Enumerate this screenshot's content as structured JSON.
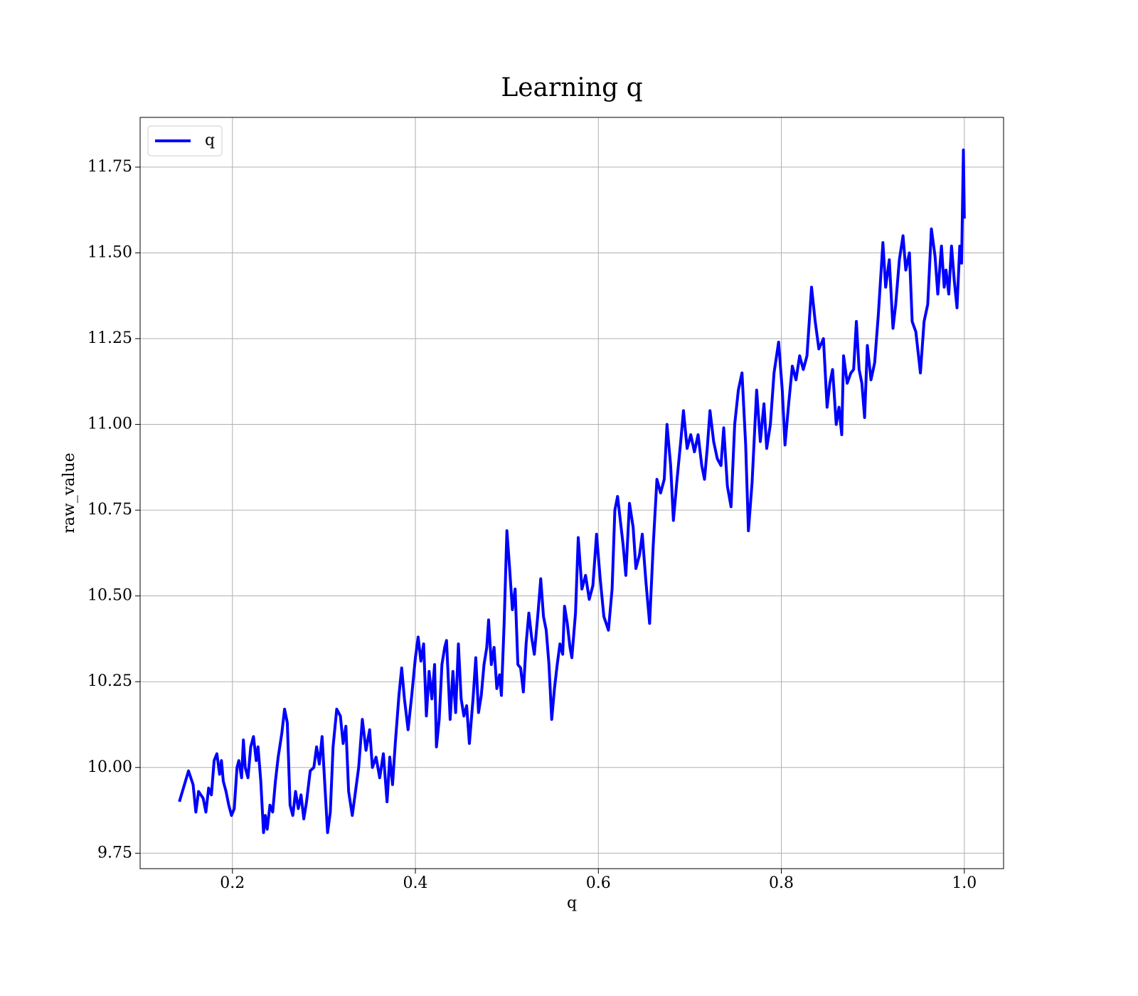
{
  "chart_data": {
    "type": "line",
    "title": "Learning q",
    "xlabel": "q",
    "ylabel": "raw_value",
    "xlim": [
      0.0991,
      1.0429
    ],
    "ylim": [
      9.705,
      11.895
    ],
    "xticks": [
      0.2,
      0.4,
      0.6,
      0.8,
      {
        "value": 1,
        "label": "1.0"
      }
    ],
    "yticks": [
      9.75,
      {
        "value": 10,
        "label": "10.00"
      },
      10.25,
      {
        "value": 10.5,
        "label": "10.50"
      },
      10.75,
      {
        "value": 11,
        "label": "11.00"
      },
      11.25,
      {
        "value": 11.5,
        "label": "11.50"
      },
      11.75
    ],
    "grid": true,
    "legend": "upper left",
    "x": [
      0.142,
      0.152,
      0.157,
      0.16,
      0.163,
      0.168,
      0.171,
      0.174,
      0.177,
      0.18,
      0.183,
      0.186,
      0.188,
      0.19,
      0.193,
      0.196,
      0.199,
      0.202,
      0.205,
      0.207,
      0.21,
      0.212,
      0.214,
      0.217,
      0.22,
      0.223,
      0.226,
      0.228,
      0.231,
      0.234,
      0.236,
      0.238,
      0.241,
      0.244,
      0.247,
      0.25,
      0.254,
      0.257,
      0.26,
      0.263,
      0.266,
      0.269,
      0.272,
      0.275,
      0.278,
      0.281,
      0.285,
      0.289,
      0.292,
      0.295,
      0.298,
      0.301,
      0.304,
      0.307,
      0.31,
      0.314,
      0.318,
      0.321,
      0.324,
      0.327,
      0.331,
      0.335,
      0.338,
      0.342,
      0.346,
      0.35,
      0.353,
      0.357,
      0.361,
      0.365,
      0.369,
      0.372,
      0.375,
      0.378,
      0.382,
      0.385,
      0.388,
      0.392,
      0.396,
      0.4,
      0.403,
      0.406,
      0.409,
      0.412,
      0.415,
      0.418,
      0.421,
      0.423,
      0.426,
      0.429,
      0.432,
      0.434,
      0.438,
      0.441,
      0.444,
      0.447,
      0.45,
      0.453,
      0.456,
      0.459,
      0.463,
      0.466,
      0.469,
      0.472,
      0.475,
      0.478,
      0.48,
      0.483,
      0.486,
      0.489,
      0.492,
      0.494,
      0.497,
      0.5,
      0.503,
      0.506,
      0.509,
      0.512,
      0.515,
      0.518,
      0.521,
      0.524,
      0.527,
      0.53,
      0.534,
      0.537,
      0.54,
      0.543,
      0.546,
      0.549,
      0.552,
      0.555,
      0.558,
      0.561,
      0.563,
      0.566,
      0.569,
      0.571,
      0.575,
      0.578,
      0.582,
      0.586,
      0.59,
      0.594,
      0.598,
      0.602,
      0.606,
      0.611,
      0.615,
      0.618,
      0.621,
      0.624,
      0.627,
      0.63,
      0.634,
      0.638,
      0.641,
      0.645,
      0.648,
      0.652,
      0.656,
      0.66,
      0.664,
      0.668,
      0.672,
      0.675,
      0.679,
      0.682,
      0.686,
      0.69,
      0.693,
      0.697,
      0.701,
      0.705,
      0.709,
      0.713,
      0.716,
      0.719,
      0.722,
      0.726,
      0.73,
      0.734,
      0.737,
      0.741,
      0.745,
      0.749,
      0.753,
      0.757,
      0.761,
      0.764,
      0.768,
      0.773,
      0.777,
      0.781,
      0.784,
      0.788,
      0.792,
      0.797,
      0.801,
      0.804,
      0.808,
      0.812,
      0.816,
      0.82,
      0.824,
      0.828,
      0.833,
      0.837,
      0.841,
      0.846,
      0.85,
      0.853,
      0.856,
      0.86,
      0.863,
      0.866,
      0.868,
      0.872,
      0.876,
      0.879,
      0.882,
      0.885,
      0.888,
      0.891,
      0.894,
      0.898,
      0.902,
      0.906,
      0.911,
      0.914,
      0.918,
      0.922,
      0.925,
      0.929,
      0.933,
      0.936,
      0.94,
      0.943,
      0.947,
      0.952,
      0.956,
      0.96,
      0.964,
      0.968,
      0.971,
      0.975,
      0.978,
      0.98,
      0.983,
      0.986,
      0.989,
      0.992,
      0.995,
      0.997,
      0.999,
      1.0
    ],
    "series": [
      {
        "name": "q",
        "color": "#0000ff",
        "values": [
          9.9,
          9.99,
          9.95,
          9.87,
          9.93,
          9.91,
          9.87,
          9.94,
          9.92,
          10.02,
          10.04,
          9.98,
          10.02,
          9.96,
          9.93,
          9.89,
          9.86,
          9.88,
          10.0,
          10.02,
          9.97,
          10.08,
          10.0,
          9.97,
          10.06,
          10.09,
          10.02,
          10.06,
          9.96,
          9.81,
          9.86,
          9.82,
          9.89,
          9.87,
          9.96,
          10.03,
          10.1,
          10.17,
          10.13,
          9.89,
          9.86,
          9.93,
          9.88,
          9.92,
          9.85,
          9.9,
          9.99,
          10.0,
          10.06,
          10.01,
          10.09,
          9.95,
          9.81,
          9.87,
          10.06,
          10.17,
          10.15,
          10.07,
          10.12,
          9.93,
          9.86,
          9.94,
          10.0,
          10.14,
          10.05,
          10.11,
          10.0,
          10.03,
          9.97,
          10.04,
          9.9,
          10.03,
          9.95,
          10.07,
          10.21,
          10.29,
          10.2,
          10.11,
          10.21,
          10.32,
          10.38,
          10.31,
          10.36,
          10.15,
          10.28,
          10.2,
          10.3,
          10.06,
          10.14,
          10.3,
          10.35,
          10.37,
          10.14,
          10.28,
          10.16,
          10.36,
          10.2,
          10.15,
          10.18,
          10.07,
          10.2,
          10.32,
          10.16,
          10.21,
          10.3,
          10.35,
          10.43,
          10.3,
          10.35,
          10.23,
          10.27,
          10.21,
          10.42,
          10.69,
          10.58,
          10.46,
          10.52,
          10.3,
          10.29,
          10.22,
          10.36,
          10.45,
          10.38,
          10.33,
          10.45,
          10.55,
          10.44,
          10.4,
          10.3,
          10.14,
          10.23,
          10.3,
          10.36,
          10.33,
          10.47,
          10.42,
          10.35,
          10.32,
          10.45,
          10.67,
          10.52,
          10.56,
          10.49,
          10.53,
          10.68,
          10.55,
          10.44,
          10.4,
          10.52,
          10.75,
          10.79,
          10.72,
          10.65,
          10.56,
          10.77,
          10.7,
          10.58,
          10.62,
          10.68,
          10.54,
          10.42,
          10.65,
          10.84,
          10.8,
          10.84,
          11.0,
          10.88,
          10.72,
          10.84,
          10.95,
          11.04,
          10.93,
          10.97,
          10.92,
          10.97,
          10.88,
          10.84,
          10.93,
          11.04,
          10.95,
          10.9,
          10.88,
          10.99,
          10.82,
          10.76,
          11.0,
          11.1,
          11.15,
          10.94,
          10.69,
          10.83,
          11.1,
          10.95,
          11.06,
          10.93,
          11.0,
          11.15,
          11.24,
          11.1,
          10.94,
          11.06,
          11.17,
          11.13,
          11.2,
          11.16,
          11.2,
          11.4,
          11.3,
          11.22,
          11.25,
          11.05,
          11.12,
          11.16,
          11.0,
          11.05,
          10.97,
          11.2,
          11.12,
          11.15,
          11.16,
          11.3,
          11.16,
          11.12,
          11.02,
          11.23,
          11.13,
          11.18,
          11.32,
          11.53,
          11.4,
          11.48,
          11.28,
          11.35,
          11.48,
          11.55,
          11.45,
          11.5,
          11.3,
          11.27,
          11.15,
          11.3,
          11.35,
          11.57,
          11.49,
          11.38,
          11.52,
          11.4,
          11.45,
          11.38,
          11.52,
          11.42,
          11.34,
          11.52,
          11.47,
          11.8,
          11.6
        ]
      }
    ]
  }
}
